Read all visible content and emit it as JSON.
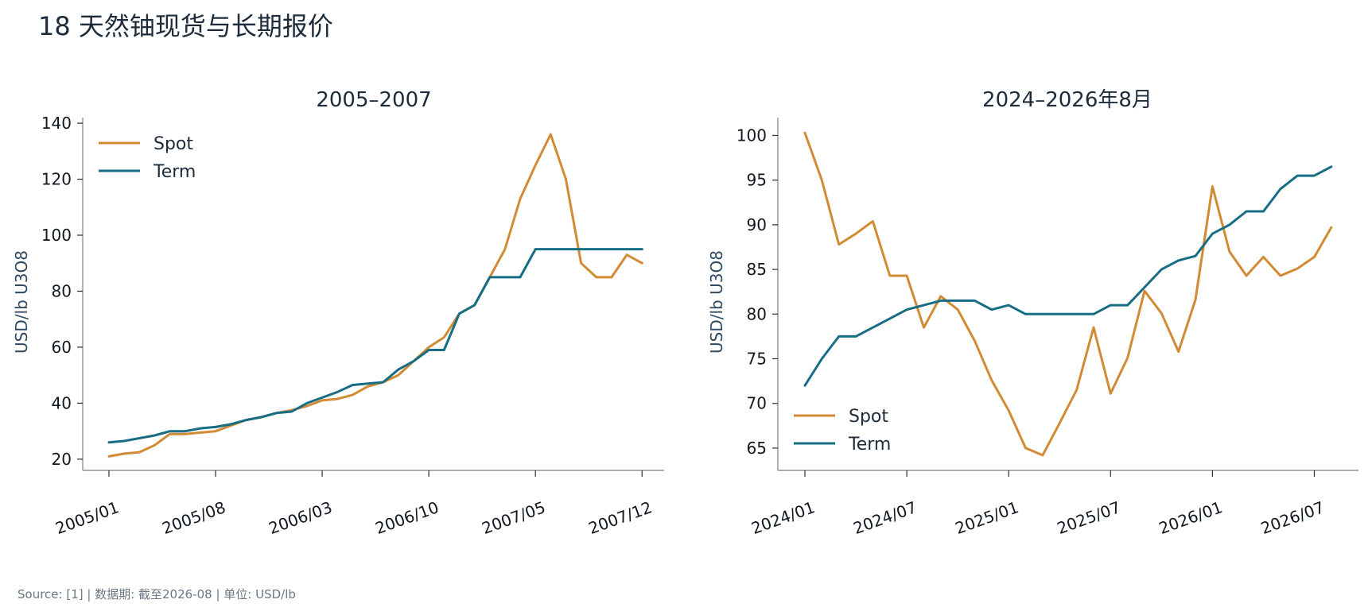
{
  "header": {
    "title": "18  天然铀现货与长期报价",
    "source": "Source: [1] | 数据期: 截至2026-08 | 单位: USD/lb"
  },
  "colors": {
    "spot": "#d38a35",
    "term": "#176d84"
  },
  "chart_data": [
    {
      "type": "line",
      "title": "2005–2007",
      "xlabel": "",
      "ylabel": "USD/lb U3O8",
      "x_tick_labels": [
        "2005/01",
        "2005/08",
        "2006/03",
        "2006/10",
        "2007/05",
        "2007/12"
      ],
      "ylim": [
        16,
        142
      ],
      "y_ticks": [
        20,
        40,
        60,
        80,
        100,
        120,
        140
      ],
      "legend_position": "top-left",
      "x": [
        "2005/01",
        "2005/02",
        "2005/03",
        "2005/04",
        "2005/05",
        "2005/06",
        "2005/07",
        "2005/08",
        "2005/09",
        "2005/10",
        "2005/11",
        "2005/12",
        "2006/01",
        "2006/02",
        "2006/03",
        "2006/04",
        "2006/05",
        "2006/06",
        "2006/07",
        "2006/08",
        "2006/09",
        "2006/10",
        "2006/11",
        "2006/12",
        "2007/01",
        "2007/02",
        "2007/03",
        "2007/04",
        "2007/05",
        "2007/06",
        "2007/07",
        "2007/08",
        "2007/09",
        "2007/10",
        "2007/11",
        "2007/12"
      ],
      "series": [
        {
          "name": "Spot",
          "values": [
            21,
            22,
            22.5,
            25,
            29,
            29,
            29.5,
            30,
            32,
            34,
            35,
            36.5,
            37.5,
            39,
            41,
            41.5,
            43,
            46,
            47.5,
            50,
            55,
            60,
            63.5,
            72,
            75,
            85,
            95,
            113,
            125,
            136,
            120,
            90,
            85,
            85,
            93,
            90
          ]
        },
        {
          "name": "Term",
          "values": [
            26,
            26.5,
            27.5,
            28.5,
            30,
            30,
            31,
            31.5,
            32.5,
            34,
            35,
            36.5,
            37,
            40,
            42,
            44,
            46.5,
            47,
            47.5,
            52,
            55,
            59,
            59,
            72,
            75,
            85,
            85,
            85,
            95,
            95,
            95,
            95,
            95,
            95,
            95,
            95
          ]
        }
      ]
    },
    {
      "type": "line",
      "title": "2024–2026年8月",
      "xlabel": "",
      "ylabel": "USD/lb U3O8",
      "x_tick_labels": [
        "2024/01",
        "2024/07",
        "2025/01",
        "2025/07",
        "2026/01",
        "2026/07"
      ],
      "ylim": [
        62.5,
        102
      ],
      "y_ticks": [
        65,
        70,
        75,
        80,
        85,
        90,
        95,
        100
      ],
      "legend_position": "bottom-left",
      "x": [
        "2024/01",
        "2024/02",
        "2024/03",
        "2024/04",
        "2024/05",
        "2024/06",
        "2024/07",
        "2024/08",
        "2024/09",
        "2024/10",
        "2024/11",
        "2024/12",
        "2025/01",
        "2025/02",
        "2025/03",
        "2025/04",
        "2025/05",
        "2025/06",
        "2025/07",
        "2025/08",
        "2025/09",
        "2025/10",
        "2025/11",
        "2025/12",
        "2026/01",
        "2026/02",
        "2026/03",
        "2026/04",
        "2026/05",
        "2026/06",
        "2026/07",
        "2026/08"
      ],
      "series": [
        {
          "name": "Spot",
          "values": [
            100.3,
            95,
            87.8,
            89,
            90.4,
            84.3,
            84.3,
            78.5,
            82,
            80.5,
            77,
            72.6,
            69.2,
            65,
            64.2,
            67.8,
            71.5,
            78.5,
            71.1,
            75.1,
            82.6,
            80.1,
            75.8,
            81.6,
            94.3,
            87,
            84.3,
            86.4,
            84.3,
            85.1,
            86.4,
            89.7
          ]
        },
        {
          "name": "Term",
          "values": [
            72,
            75,
            77.5,
            77.5,
            78.5,
            79.5,
            80.5,
            81,
            81.5,
            81.5,
            81.5,
            80.5,
            81,
            80,
            80,
            80,
            80,
            80,
            81,
            81,
            83,
            85,
            86,
            86.5,
            89,
            90,
            91.5,
            91.5,
            94,
            95.5,
            95.5,
            96.5
          ]
        }
      ]
    }
  ]
}
